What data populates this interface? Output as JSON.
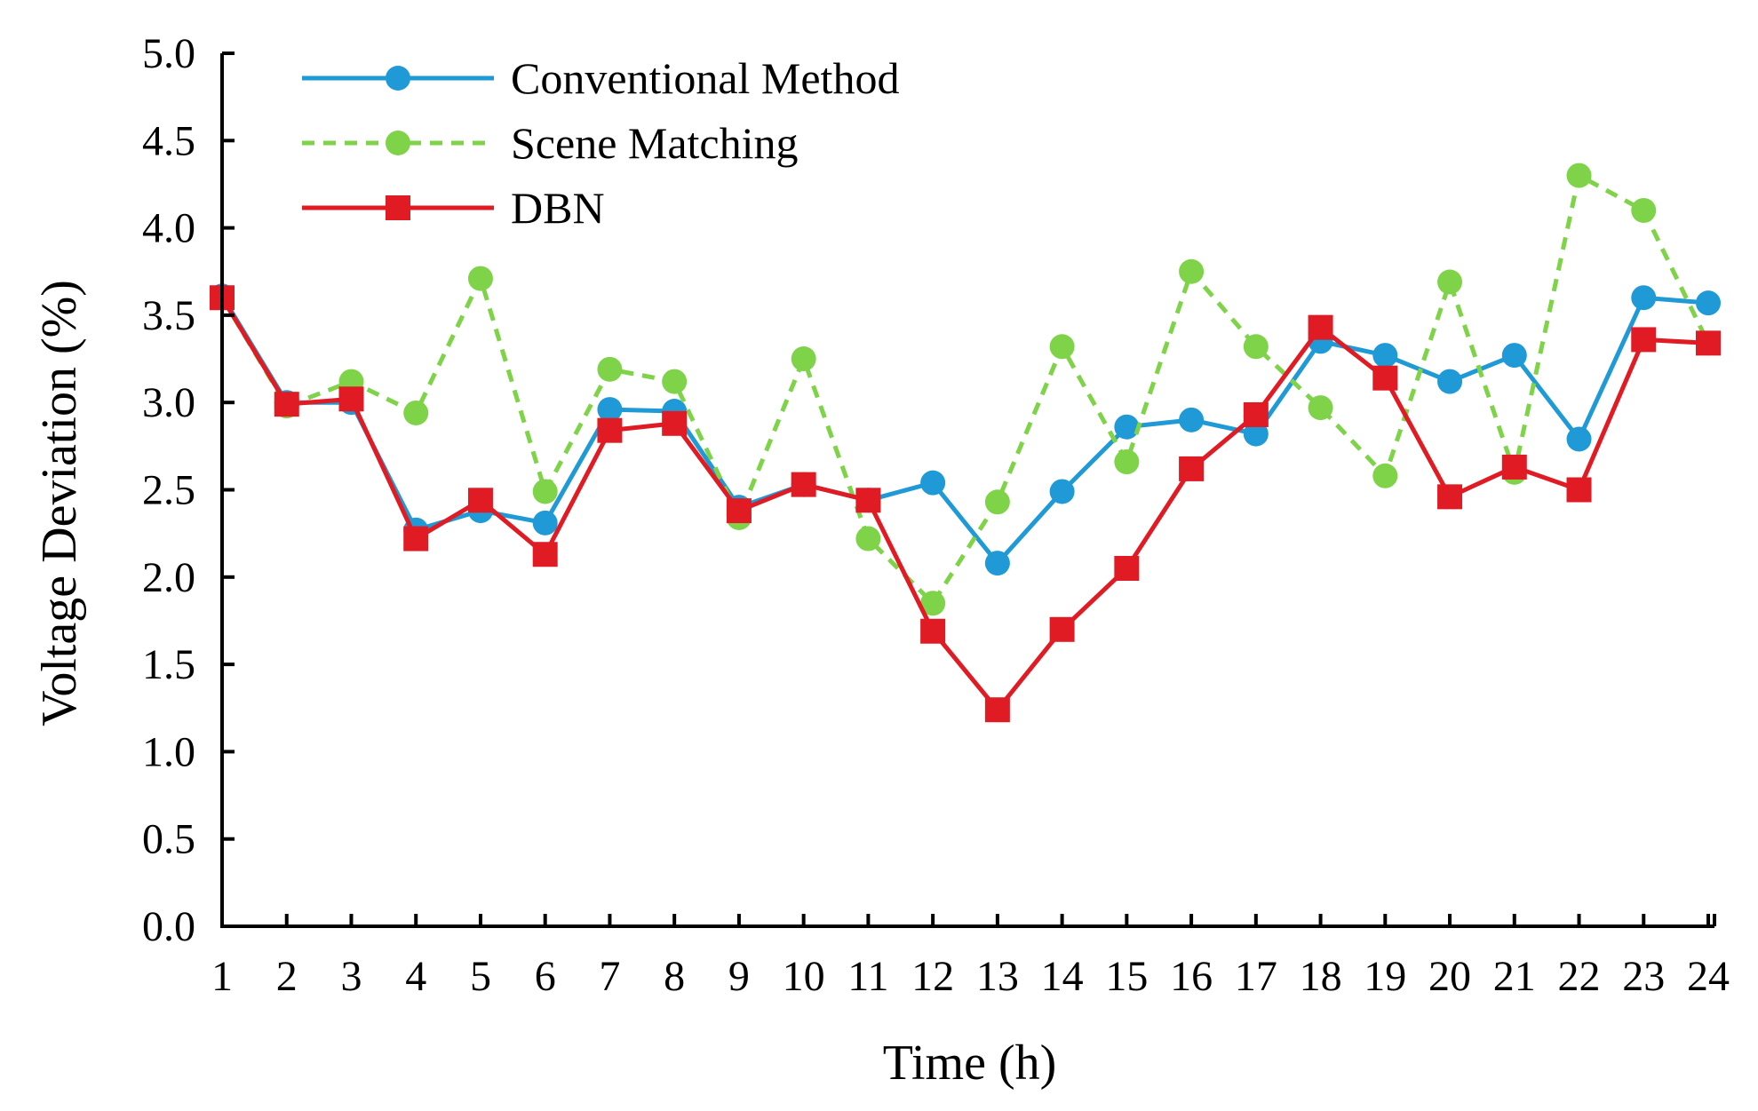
{
  "chart_data": {
    "type": "line",
    "title": "",
    "xlabel": "Time (h)",
    "ylabel": "Voltage Deviation (%)",
    "x": [
      1,
      2,
      3,
      4,
      5,
      6,
      7,
      8,
      9,
      10,
      11,
      12,
      13,
      14,
      15,
      16,
      17,
      18,
      19,
      20,
      21,
      22,
      23,
      24
    ],
    "x_tick_labels": [
      "1",
      "2",
      "3",
      "4",
      "5",
      "6",
      "7",
      "8",
      "9",
      "10",
      "11",
      "12",
      "13",
      "14",
      "15",
      "16",
      "17",
      "18",
      "19",
      "20",
      "21",
      "22",
      "23",
      "24"
    ],
    "ylim": [
      0.0,
      5.0
    ],
    "y_ticks": [
      0.0,
      0.5,
      1.0,
      1.5,
      2.0,
      2.5,
      3.0,
      3.5,
      4.0,
      4.5,
      5.0
    ],
    "y_tick_labels": [
      "0.0",
      "0.5",
      "1.0",
      "1.5",
      "2.0",
      "2.5",
      "3.0",
      "3.5",
      "4.0",
      "4.5",
      "5.0"
    ],
    "grid": false,
    "legend_position": "top-left",
    "series": [
      {
        "name": "Conventional Method",
        "color": "#1f9ad6",
        "line_style": "solid",
        "marker": "circle",
        "values": [
          3.61,
          3.0,
          3.0,
          2.27,
          2.38,
          2.31,
          2.96,
          2.95,
          2.4,
          2.53,
          2.44,
          2.54,
          2.08,
          2.49,
          2.86,
          2.9,
          2.82,
          3.35,
          3.27,
          3.12,
          3.27,
          2.79,
          3.6,
          3.57
        ]
      },
      {
        "name": "Scene Matching",
        "color": "#7ed348",
        "line_style": "dashed",
        "marker": "circle",
        "values": [
          3.6,
          2.98,
          3.12,
          2.94,
          3.71,
          2.49,
          3.19,
          3.12,
          2.34,
          3.25,
          2.22,
          1.85,
          2.43,
          3.32,
          2.66,
          3.75,
          3.32,
          2.97,
          2.58,
          3.69,
          2.6,
          4.3,
          4.1,
          3.34
        ]
      },
      {
        "name": "DBN",
        "color": "#e01b24",
        "line_style": "solid",
        "marker": "square",
        "values": [
          3.6,
          2.99,
          3.02,
          2.22,
          2.44,
          2.13,
          2.84,
          2.88,
          2.38,
          2.53,
          2.44,
          1.69,
          1.24,
          1.7,
          2.05,
          2.62,
          2.93,
          3.43,
          3.14,
          2.46,
          2.63,
          2.5,
          3.36,
          3.34
        ]
      }
    ]
  }
}
